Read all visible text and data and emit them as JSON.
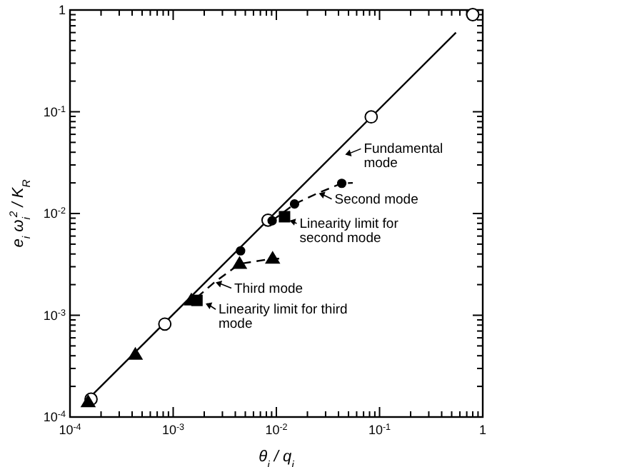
{
  "chart_data": {
    "type": "scatter",
    "xlabel": "θ$_{i}$ / q$_{i}$",
    "ylabel": "e$_{i}$ ω$_{i}$$^{2}$ / K$_{R}$",
    "log": "xy",
    "grid": false,
    "xlim": [
      0.0001,
      1
    ],
    "ylim": [
      0.0001,
      1
    ],
    "xticks": [
      {
        "value": 0.0001,
        "label": "10$^{-4}$"
      },
      {
        "value": 0.0002,
        "label": null
      },
      {
        "value": 0.0003,
        "label": null
      },
      {
        "value": 0.0004,
        "label": null
      },
      {
        "value": 0.0005,
        "label": null
      },
      {
        "value": 0.0006,
        "label": null
      },
      {
        "value": 0.0007,
        "label": null
      },
      {
        "value": 0.0008,
        "label": null
      },
      {
        "value": 0.0009,
        "label": null
      },
      {
        "value": 0.001,
        "label": "10$^{-3}$"
      },
      {
        "value": 0.002,
        "label": null
      },
      {
        "value": 0.003,
        "label": null
      },
      {
        "value": 0.004,
        "label": null
      },
      {
        "value": 0.005,
        "label": null
      },
      {
        "value": 0.006,
        "label": null
      },
      {
        "value": 0.007,
        "label": null
      },
      {
        "value": 0.008,
        "label": null
      },
      {
        "value": 0.009,
        "label": null
      },
      {
        "value": 0.01,
        "label": "10$^{-2}$"
      },
      {
        "value": 0.02,
        "label": null
      },
      {
        "value": 0.03,
        "label": null
      },
      {
        "value": 0.04,
        "label": null
      },
      {
        "value": 0.05,
        "label": null
      },
      {
        "value": 0.06,
        "label": null
      },
      {
        "value": 0.07,
        "label": null
      },
      {
        "value": 0.08,
        "label": null
      },
      {
        "value": 0.09,
        "label": null
      },
      {
        "value": 0.1,
        "label": "10$^{-1}$"
      },
      {
        "value": 0.2,
        "label": null
      },
      {
        "value": 0.3,
        "label": null
      },
      {
        "value": 0.4,
        "label": null
      },
      {
        "value": 0.5,
        "label": null
      },
      {
        "value": 0.6,
        "label": null
      },
      {
        "value": 0.7,
        "label": null
      },
      {
        "value": 0.8,
        "label": null
      },
      {
        "value": 0.9,
        "label": null
      },
      1
    ],
    "yticks": [
      {
        "value": 0.0001,
        "label": "10$^{-4}$"
      },
      {
        "value": 0.0002,
        "label": null
      },
      {
        "value": 0.0003,
        "label": null
      },
      {
        "value": 0.0004,
        "label": null
      },
      {
        "value": 0.0005,
        "label": null
      },
      {
        "value": 0.0006,
        "label": null
      },
      {
        "value": 0.0007,
        "label": null
      },
      {
        "value": 0.0008,
        "label": null
      },
      {
        "value": 0.0009,
        "label": null
      },
      {
        "value": 0.001,
        "label": "10$^{-3}$"
      },
      {
        "value": 0.002,
        "label": null
      },
      {
        "value": 0.003,
        "label": null
      },
      {
        "value": 0.004,
        "label": null
      },
      {
        "value": 0.005,
        "label": null
      },
      {
        "value": 0.006,
        "label": null
      },
      {
        "value": 0.007,
        "label": null
      },
      {
        "value": 0.008,
        "label": null
      },
      {
        "value": 0.009,
        "label": null
      },
      {
        "value": 0.01,
        "label": "10$^{-2}$"
      },
      {
        "value": 0.02,
        "label": null
      },
      {
        "value": 0.03,
        "label": null
      },
      {
        "value": 0.04,
        "label": null
      },
      {
        "value": 0.05,
        "label": null
      },
      {
        "value": 0.06,
        "label": null
      },
      {
        "value": 0.07,
        "label": null
      },
      {
        "value": 0.08,
        "label": null
      },
      {
        "value": 0.09,
        "label": null
      },
      {
        "value": 0.1,
        "label": "10$^{-1}$"
      },
      {
        "value": 0.2,
        "label": null
      },
      {
        "value": 0.3,
        "label": null
      },
      {
        "value": 0.4,
        "label": null
      },
      {
        "value": 0.5,
        "label": null
      },
      {
        "value": 0.6,
        "label": null
      },
      {
        "value": 0.7,
        "label": null
      },
      {
        "value": 0.8,
        "label": null
      },
      {
        "value": 0.9,
        "label": null
      },
      1
    ],
    "series": [
      {
        "type": "line",
        "color": "#000000",
        "marker": "none",
        "line_style": "solid",
        "x": [
          0.00014,
          0.55
        ],
        "values": [
          0.00014,
          0.6
        ]
      },
      {
        "type": "line",
        "color": "#000000",
        "marker": "none",
        "line_style": "dashed",
        "x": [
          0.0091,
          0.015,
          0.025,
          0.043,
          0.055
        ],
        "values": [
          0.0085,
          0.0124,
          0.0158,
          0.0198,
          0.02
        ]
      },
      {
        "type": "line",
        "color": "#000000",
        "marker": "none",
        "line_style": "dashed",
        "x": [
          0.0017,
          0.0025,
          0.0044,
          0.0092,
          0.011
        ],
        "values": [
          0.0015,
          0.0021,
          0.0032,
          0.0036,
          0.0036
        ]
      },
      {
        "color": "#ffffff",
        "marker": "circle",
        "x": [
          0.00016,
          0.00083,
          0.0083,
          0.083,
          0.8
        ],
        "values": [
          0.00015,
          0.00082,
          0.0086,
          0.089,
          0.9
        ]
      },
      {
        "color": "#000000",
        "marker": "circle",
        "x": [
          0.0045,
          0.0091,
          0.015,
          0.043
        ],
        "values": [
          0.0043,
          0.0085,
          0.0124,
          0.0198
        ]
      },
      {
        "color": "#000000",
        "marker": "triangle",
        "x": [
          0.00015,
          0.00043,
          0.0015,
          0.0044,
          0.0092
        ],
        "values": [
          0.00014,
          0.00041,
          0.0014,
          0.0032,
          0.0036
        ]
      },
      {
        "color": "#000000",
        "marker": "square",
        "x": [
          0.0017,
          0.012
        ],
        "values": [
          0.0014,
          0.0093
        ]
      }
    ],
    "annotations": [
      {
        "text": "Fundamental\nmode",
        "x": 0.045,
        "y": 0.038
      },
      {
        "text": "Second mode",
        "x": 0.025,
        "y": 0.0158
      },
      {
        "text": "Linearity limit for\nsecond mode",
        "x": 0.013,
        "y": 0.0085
      },
      {
        "text": "Third mode",
        "x": 0.0025,
        "y": 0.0021
      },
      {
        "text": "Linearity  limit for third\nmode",
        "x": 0.002,
        "y": 0.0013
      }
    ]
  }
}
